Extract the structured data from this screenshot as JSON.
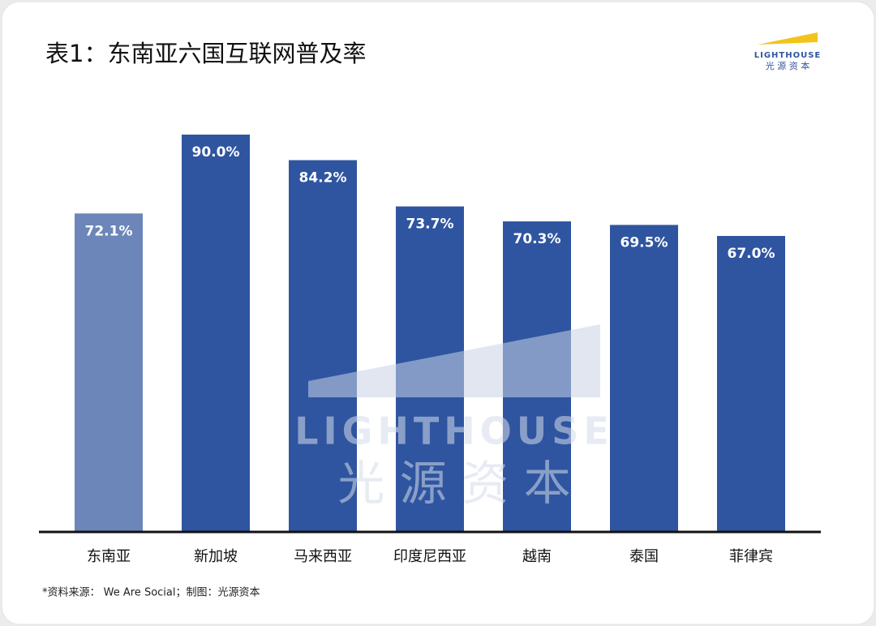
{
  "chart_data": {
    "type": "bar",
    "title": "表1：东南亚六国互联网普及率",
    "categories": [
      "东南亚",
      "新加坡",
      "马来西亚",
      "印度尼西亚",
      "越南",
      "泰国",
      "菲律宾"
    ],
    "values": [
      72.1,
      90.0,
      84.2,
      73.7,
      70.3,
      69.5,
      67.0
    ],
    "value_labels": [
      "72.1%",
      "90.0%",
      "84.2%",
      "73.7%",
      "70.3%",
      "69.5%",
      "67.0%"
    ],
    "colors": [
      "#6d86b9",
      "#2f55a0",
      "#2f55a0",
      "#2f55a0",
      "#2f55a0",
      "#2f55a0",
      "#2f55a0"
    ],
    "source": "*资料来源： We Are Social；制图：光源资本"
  },
  "logo": {
    "brand": "LIGHTHOUSE",
    "name": "光 源 资 本"
  },
  "watermark": {
    "brand": "LIGHTHOUSE",
    "name": "光 源 资 本"
  }
}
